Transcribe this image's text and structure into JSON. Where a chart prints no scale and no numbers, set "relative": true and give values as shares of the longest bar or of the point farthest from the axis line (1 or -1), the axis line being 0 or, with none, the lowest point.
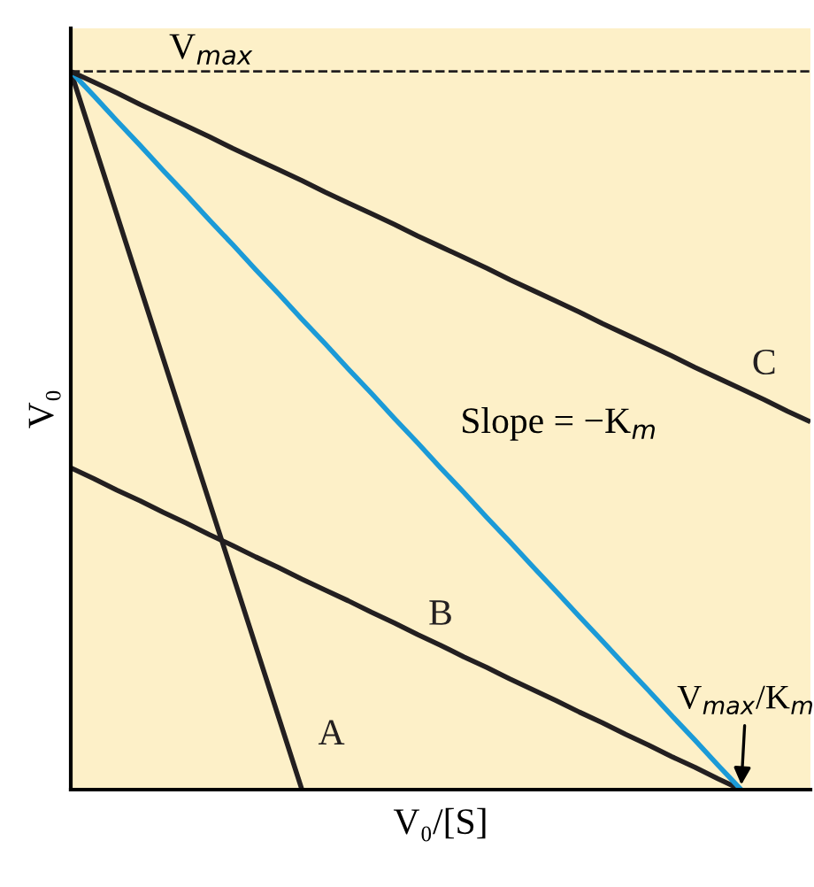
{
  "chart_data": {
    "type": "line",
    "relative": true,
    "xlabel": "V₀/[S]",
    "ylabel": "V₀",
    "marker": "none",
    "line_style": "solid",
    "categories": [
      null,
      null,
      null,
      null,
      null,
      null,
      null,
      null,
      null,
      null,
      null,
      null,
      null,
      null,
      null,
      null,
      null,
      null,
      null,
      null,
      null,
      null,
      null,
      null,
      null,
      null,
      null,
      null,
      null,
      null,
      null,
      null,
      null
    ],
    "series": [
      {
        "name": "A",
        "color": "#231f20",
        "values": [
          1,
          0.9,
          0.8,
          0.7,
          0.6,
          0.5,
          0.4,
          0.3,
          0.2,
          0.1,
          0,
          null,
          null,
          null,
          null,
          null,
          null,
          null,
          null,
          null,
          null,
          null,
          null,
          null,
          null,
          null,
          null,
          null,
          null,
          null,
          null,
          null,
          null
        ]
      },
      {
        "name": "B",
        "color": "#231f20",
        "values": [
          0.448,
          0.433,
          0.417,
          0.402,
          0.386,
          0.371,
          0.355,
          0.34,
          0.324,
          0.309,
          0.293,
          0.278,
          0.263,
          0.247,
          0.232,
          0.216,
          0.201,
          0.185,
          0.17,
          0.154,
          0.139,
          0.124,
          0.108,
          0.093,
          0.077,
          0.062,
          0.046,
          0.031,
          0.015,
          0,
          null,
          null,
          null
        ]
      },
      {
        "color": "#1b9ad7",
        "values": [
          1,
          0.966,
          0.931,
          0.897,
          0.862,
          0.828,
          0.793,
          0.759,
          0.724,
          0.69,
          0.655,
          0.621,
          0.586,
          0.552,
          0.517,
          0.483,
          0.448,
          0.414,
          0.379,
          0.345,
          0.31,
          0.276,
          0.241,
          0.207,
          0.172,
          0.138,
          0.103,
          0.069,
          0.034,
          0,
          null,
          null,
          null
        ]
      },
      {
        "name": "C",
        "color": "#231f20",
        "values": [
          1,
          0.985,
          0.97,
          0.954,
          0.939,
          0.924,
          0.909,
          0.893,
          0.878,
          0.863,
          0.848,
          0.832,
          0.817,
          0.802,
          0.787,
          0.771,
          0.756,
          0.741,
          0.726,
          0.71,
          0.695,
          0.68,
          0.665,
          0.649,
          0.634,
          0.619,
          0.604,
          0.588,
          0.573,
          0.558,
          0.543,
          0.527,
          0.512
        ]
      }
    ],
    "ref_lines": [
      {
        "axis": "y",
        "value": 1,
        "label": "V$_{max}$",
        "color": "#231f20",
        "line_style": "dashed"
      }
    ],
    "annotations": [
      "Slope = −K$_{m}$",
      "V$_{max}$/K$_{m}$"
    ]
  }
}
